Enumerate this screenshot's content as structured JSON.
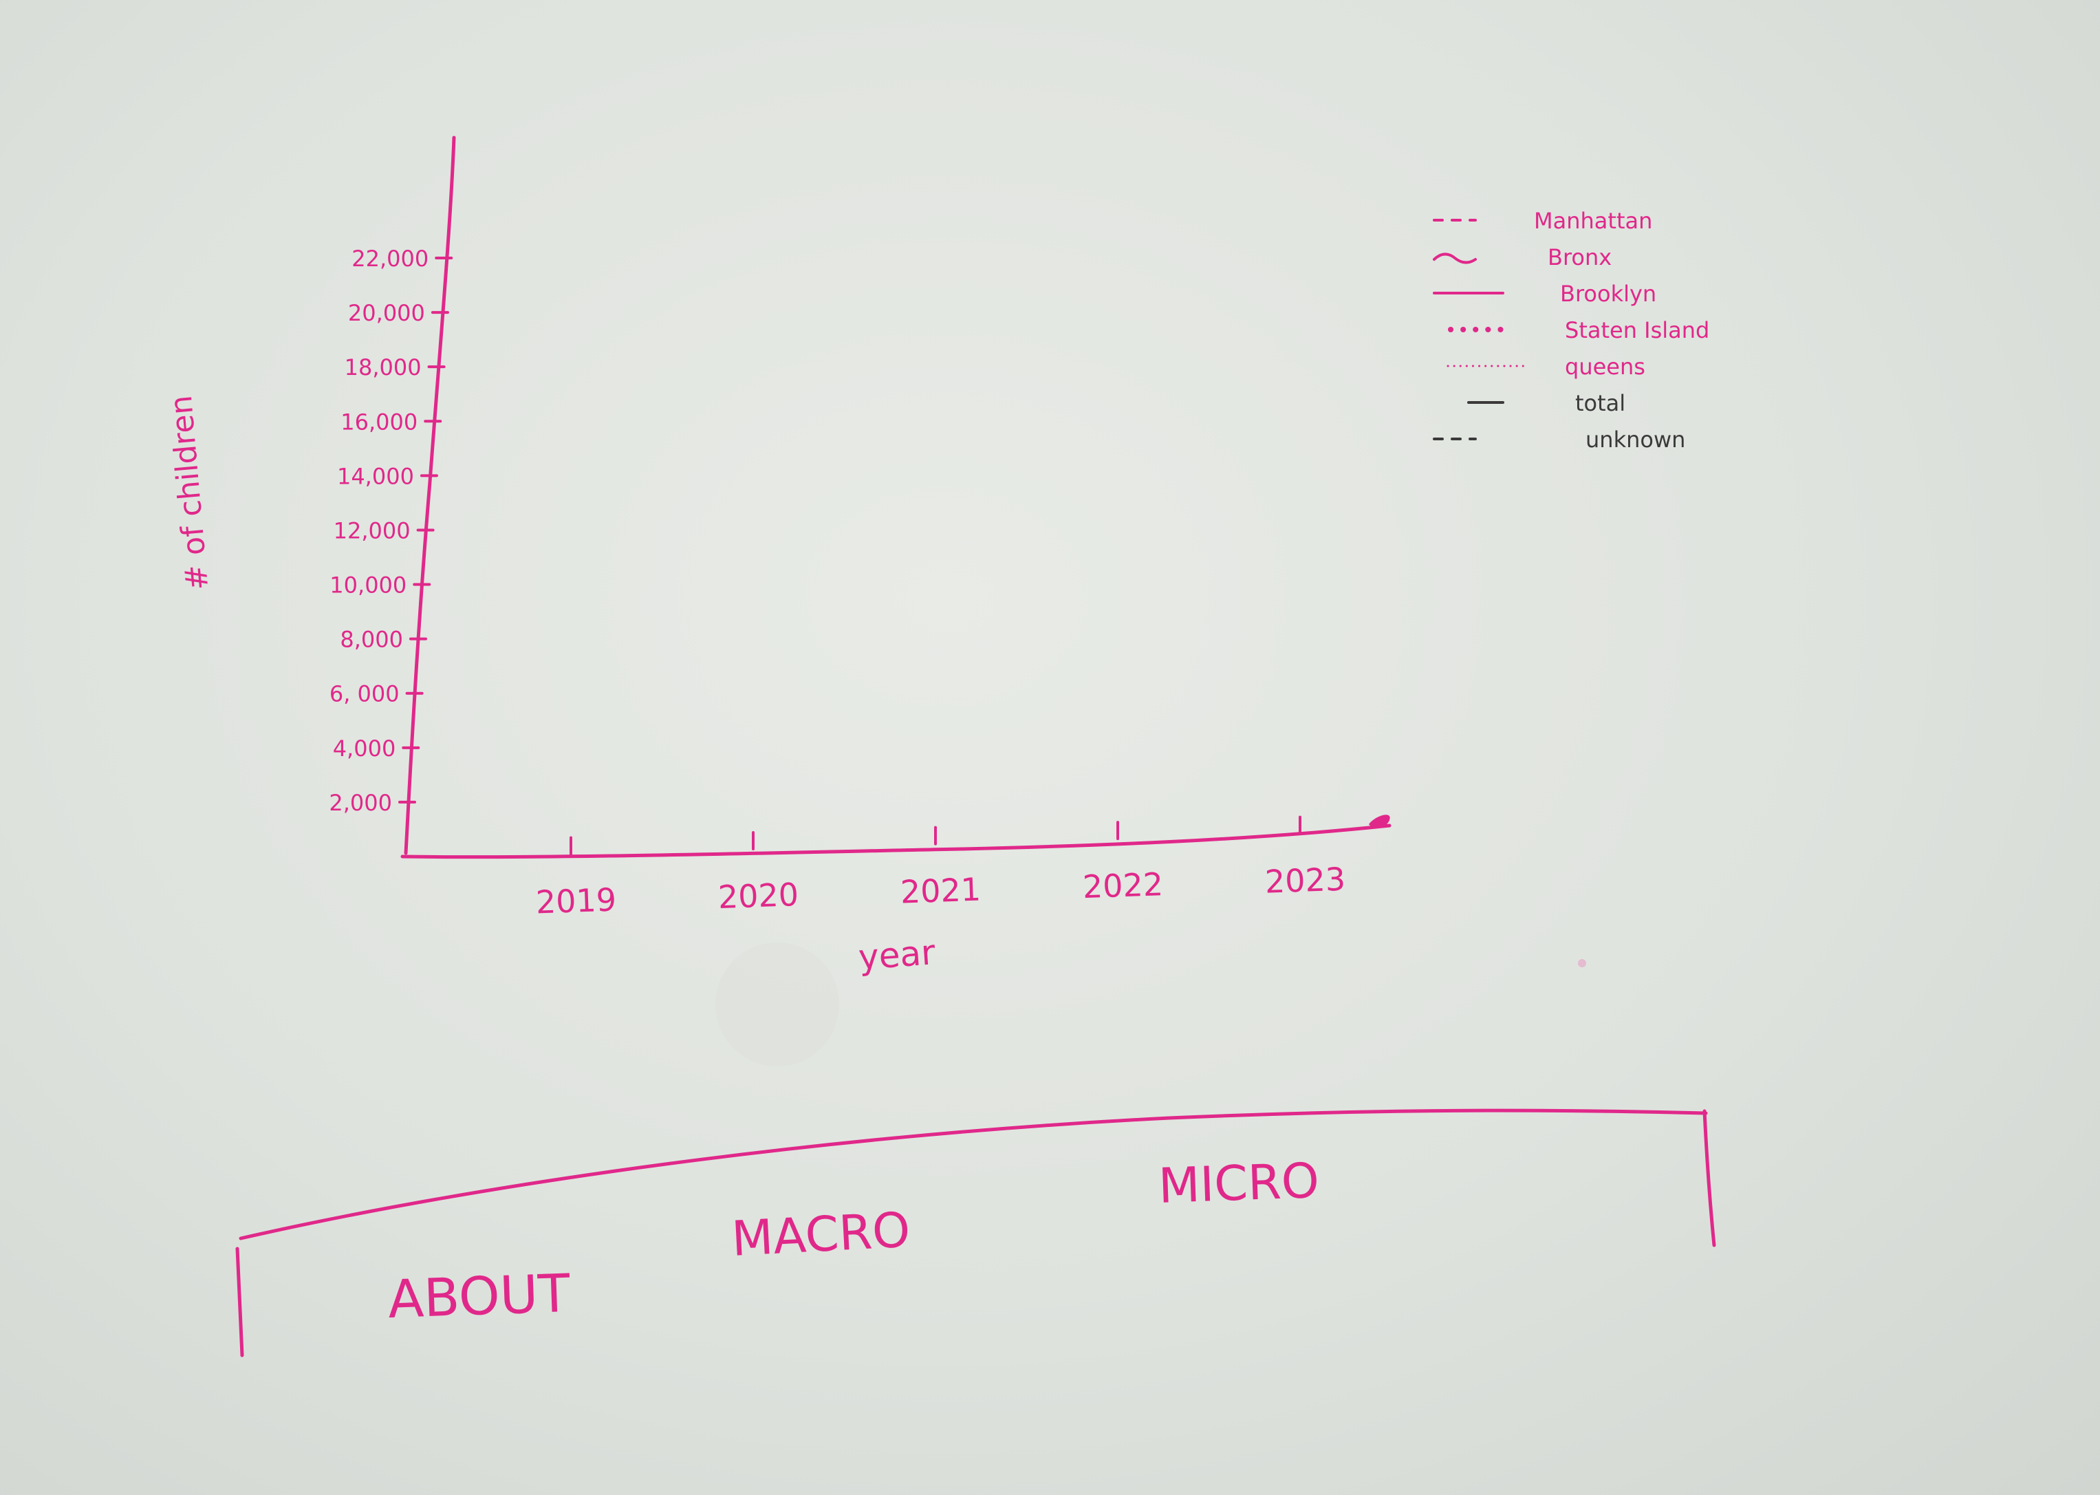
{
  "colors": {
    "ink": "#e0288a",
    "paper": "#e2e5e0",
    "pencil": "#3a3a3a"
  },
  "chart_data": {
    "type": "line",
    "title": "",
    "xlabel": "year",
    "ylabel": "# of children",
    "x_categories": [
      "2019",
      "2020",
      "2021",
      "2022",
      "2023"
    ],
    "y_ticks": [
      2000,
      4000,
      6000,
      8000,
      10000,
      12000,
      14000,
      16000,
      18000,
      20000,
      22000
    ],
    "y_tick_labels": [
      "2,000",
      "4,000",
      "6, 000",
      "8,000",
      "10,000",
      "12,000",
      "14,000",
      "16,000",
      "18,000",
      "20,000",
      "22,000"
    ],
    "ylim": [
      0,
      22000
    ],
    "grid": false,
    "legend_position": "top-right",
    "series": [],
    "legend": [
      {
        "label": "Manhattan",
        "style": "dashed-short"
      },
      {
        "label": "Bronx",
        "style": "wavy"
      },
      {
        "label": "Brooklyn",
        "style": "solid"
      },
      {
        "label": "Staten Island",
        "style": "dots-large"
      },
      {
        "label": "queens",
        "style": "dotted"
      },
      {
        "label": "total",
        "style": "solid-dark"
      },
      {
        "label": "unknown",
        "style": "dashed-dark"
      }
    ]
  },
  "nav": {
    "tabs": [
      {
        "label": "ABOUT"
      },
      {
        "label": "MACRO"
      },
      {
        "label": "MICRO"
      }
    ]
  }
}
